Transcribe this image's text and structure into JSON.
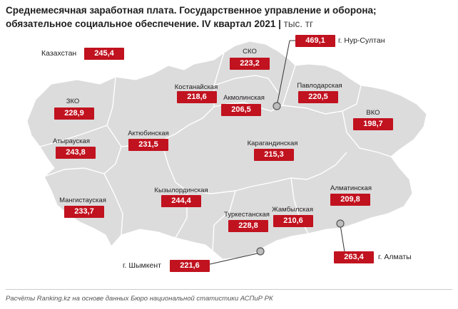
{
  "title": {
    "main": "Среднемесячная заработная плата. Государственное управление и оборона; обязательное социальное обеспечение. IV квартал 2021",
    "unit": "тыс. тг"
  },
  "national": {
    "label": "Казахстан",
    "value": "245,4"
  },
  "regions": [
    {
      "label": "СКО",
      "value": "223,2"
    },
    {
      "label": "Костанайская",
      "value": "218,6"
    },
    {
      "label": "Акмолинская",
      "value": "206,5"
    },
    {
      "label": "Павлодарская",
      "value": "220,5"
    },
    {
      "label": "ЗКО",
      "value": "228,9"
    },
    {
      "label": "ВКО",
      "value": "198,7"
    },
    {
      "label": "Атырауская",
      "value": "243,8"
    },
    {
      "label": "Актюбинская",
      "value": "231,5"
    },
    {
      "label": "Карагандинская",
      "value": "215,3"
    },
    {
      "label": "Кызылординская",
      "value": "244,4"
    },
    {
      "label": "Мангистауская",
      "value": "233,7"
    },
    {
      "label": "Алматинская",
      "value": "209,8"
    },
    {
      "label": "Туркестанская",
      "value": "228,8"
    },
    {
      "label": "Жамбылская",
      "value": "210,6"
    }
  ],
  "cities": [
    {
      "label": "г. Нур-Султан",
      "value": "469,1"
    },
    {
      "label": "г. Шымкент",
      "value": "221,6"
    },
    {
      "label": "г. Алматы",
      "value": "263,4"
    }
  ],
  "colors": {
    "accent": "#c1121f",
    "land": "#dcdcdc",
    "border": "#ffffff"
  },
  "footer": "Расчёты Ranking.kz на основе данных Бюро национальной статистики АСПиР РК"
}
